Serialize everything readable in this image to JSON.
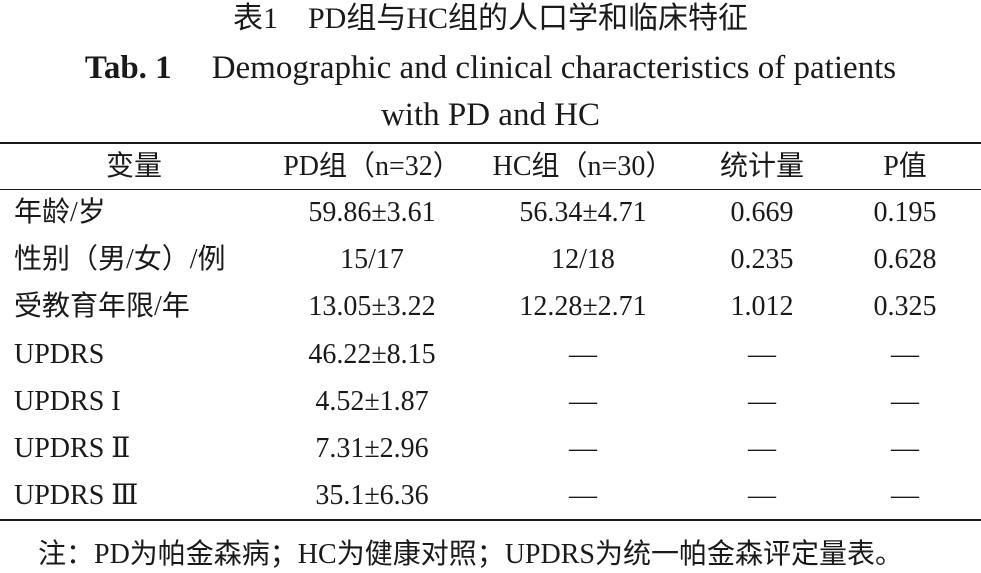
{
  "title_cn": "表1　PD组与HC组的人口学和临床特征",
  "title_en": {
    "label": "Tab. 1",
    "text_line1": "Demographic and clinical characteristics of patients",
    "text_line2": "with PD and HC"
  },
  "table": {
    "header": [
      "变量",
      "PD组（n=32）",
      "HC组（n=30）",
      "统计量",
      "P值"
    ],
    "rows": [
      [
        "年龄/岁",
        "59.86±3.61",
        "56.34±4.71",
        "0.669",
        "0.195"
      ],
      [
        "性别（男/女）/例",
        "15/17",
        "12/18",
        "0.235",
        "0.628"
      ],
      [
        "受教育年限/年",
        "13.05±3.22",
        "12.28±2.71",
        "1.012",
        "0.325"
      ],
      [
        "UPDRS",
        "46.22±8.15",
        "—",
        "—",
        "—"
      ],
      [
        "UPDRS I",
        "4.52±1.87",
        "—",
        "—",
        "—"
      ],
      [
        "UPDRS Ⅱ",
        "7.31±2.96",
        "—",
        "—",
        "—"
      ],
      [
        "UPDRS Ⅲ",
        "35.1±6.36",
        "—",
        "—",
        "—"
      ]
    ]
  },
  "footnote": "注：PD为帕金森病；HC为健康对照；UPDRS为统一帕金森评定量表。"
}
